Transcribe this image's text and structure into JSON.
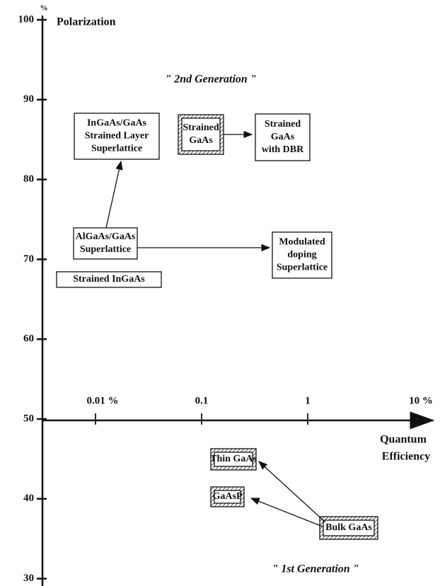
{
  "axes": {
    "y_unit": "%",
    "y_title": "Polarization",
    "y_ticks": [
      "100",
      "90",
      "80",
      "70",
      "60",
      "50",
      "40",
      "30"
    ],
    "x_ticks": [
      "0.01 %",
      "0.1",
      "1",
      "10 %"
    ],
    "x_title": [
      "Quantum",
      "Efficiency"
    ]
  },
  "annotations": [
    "\" 2nd Generation \"",
    "\" 1st Generation \""
  ],
  "nodes": [
    {
      "lines": [
        "InGaAs/GaAs",
        "Strained Layer",
        "Superlattice"
      ]
    },
    {
      "lines": [
        "Strained",
        "GaAs"
      ]
    },
    {
      "lines": [
        "Strained",
        "GaAs",
        "with DBR"
      ]
    },
    {
      "lines": [
        "AlGaAs/GaAs",
        "Superlattice"
      ]
    },
    {
      "lines": [
        "Strained InGaAs"
      ]
    },
    {
      "lines": [
        "Modulated",
        "doping",
        "Superlattice"
      ]
    },
    {
      "lines": [
        "Thin GaAs"
      ]
    },
    {
      "lines": [
        "GaAsP"
      ]
    },
    {
      "lines": [
        "Bulk GaAs"
      ]
    }
  ]
}
